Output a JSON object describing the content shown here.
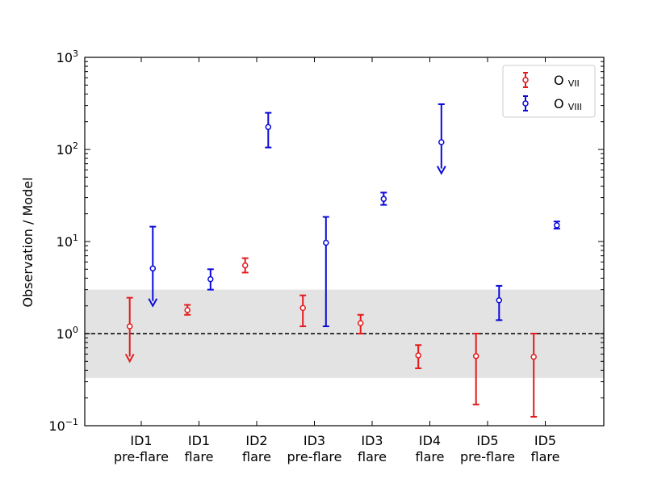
{
  "chart_data": {
    "type": "scatter",
    "ylabel": "Observation / Model",
    "yscale": "log",
    "ylim": [
      0.1,
      1000
    ],
    "y_ticks": [
      {
        "value": 0.1,
        "base": "10",
        "exp": "−1"
      },
      {
        "value": 1,
        "base": "10",
        "exp": "0"
      },
      {
        "value": 10,
        "base": "10",
        "exp": "1"
      },
      {
        "value": 100,
        "base": "10",
        "exp": "2"
      },
      {
        "value": 1000,
        "base": "10",
        "exp": "3"
      }
    ],
    "categories": [
      {
        "line1": "ID1",
        "line2": "pre-flare"
      },
      {
        "line1": "ID1",
        "line2": "flare"
      },
      {
        "line1": "ID2",
        "line2": "flare"
      },
      {
        "line1": "ID3",
        "line2": "pre-flare"
      },
      {
        "line1": "ID3",
        "line2": "flare"
      },
      {
        "line1": "ID4",
        "line2": "flare"
      },
      {
        "line1": "ID5",
        "line2": "pre-flare"
      },
      {
        "line1": "ID5",
        "line2": "flare"
      }
    ],
    "reference_line": 1,
    "shaded_band": [
      0.33,
      3.0
    ],
    "grid": false,
    "legend_position": "top-right",
    "series": [
      {
        "name": "O",
        "ion": "VII",
        "color": "#e41a1c",
        "offset": -0.2,
        "points": [
          {
            "category": 0,
            "y": 1.2,
            "low": 0.5,
            "high": 2.45,
            "upper_limit": true
          },
          {
            "category": 1,
            "y": 1.8,
            "low": 1.6,
            "high": 2.05
          },
          {
            "category": 2,
            "y": 5.5,
            "low": 4.6,
            "high": 6.6
          },
          {
            "category": 3,
            "y": 1.9,
            "low": 1.2,
            "high": 2.6
          },
          {
            "category": 4,
            "y": 1.3,
            "low": 1.0,
            "high": 1.6
          },
          {
            "category": 5,
            "y": 0.58,
            "low": 0.42,
            "high": 0.75
          },
          {
            "category": 6,
            "y": 0.57,
            "low": 0.17,
            "high": 1.0
          },
          {
            "category": 7,
            "y": 0.56,
            "low": 0.125,
            "high": 1.0
          }
        ]
      },
      {
        "name": "O",
        "ion": "VIII",
        "color": "#0b0bd9",
        "offset": 0.2,
        "points": [
          {
            "category": 0,
            "y": 5.1,
            "low": 2.0,
            "high": 14.5,
            "upper_limit": true
          },
          {
            "category": 1,
            "y": 3.9,
            "low": 3.0,
            "high": 5.0
          },
          {
            "category": 2,
            "y": 175,
            "low": 105,
            "high": 250
          },
          {
            "category": 3,
            "y": 9.7,
            "low": 1.2,
            "high": 18.5
          },
          {
            "category": 4,
            "y": 29,
            "low": 25,
            "high": 34
          },
          {
            "category": 5,
            "y": 120,
            "low": 55,
            "high": 310,
            "upper_limit": true
          },
          {
            "category": 6,
            "y": 2.3,
            "low": 1.4,
            "high": 3.3
          },
          {
            "category": 7,
            "y": 15,
            "low": 13.8,
            "high": 16.5
          }
        ]
      }
    ]
  }
}
